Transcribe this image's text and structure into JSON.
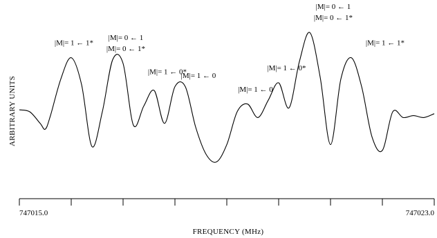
{
  "chart_data": {
    "type": "line",
    "title": "",
    "xlabel": "FREQUENCY (MHz)",
    "ylabel": "ARBITRARY UNITS",
    "xlim": [
      747015.0,
      747023.0
    ],
    "ylim": [
      0,
      1
    ],
    "grid": false,
    "x_tick_labels": [
      {
        "x": 747015.0,
        "label": "747015.0"
      },
      {
        "x": 747023.0,
        "label": "747023.0"
      }
    ],
    "x_minor_ticks": [
      747016.0,
      747017.0,
      747018.0,
      747019.0,
      747020.0,
      747021.0,
      747022.0
    ],
    "series": [
      {
        "x": [
          747015.0,
          747015.2,
          747015.4,
          747015.5,
          747015.6,
          747015.8,
          747016.0,
          747016.2,
          747016.4,
          747016.6,
          747016.8,
          747017.0,
          747017.2,
          747017.4,
          747017.6,
          747017.8,
          747018.0,
          747018.2,
          747018.4,
          747018.6,
          747018.8,
          747019.0,
          747019.2,
          747019.4,
          747019.6,
          747019.8,
          747020.0,
          747020.2,
          747020.4,
          747020.6,
          747020.8,
          747021.0,
          747021.2,
          747021.4,
          747021.6,
          747021.8,
          747022.0,
          747022.2,
          747022.4,
          747022.6,
          747022.8,
          747023.0
        ],
        "y": [
          0.46,
          0.45,
          0.39,
          0.36,
          0.43,
          0.62,
          0.73,
          0.59,
          0.27,
          0.45,
          0.72,
          0.7,
          0.38,
          0.48,
          0.56,
          0.39,
          0.58,
          0.58,
          0.37,
          0.23,
          0.19,
          0.28,
          0.45,
          0.49,
          0.42,
          0.51,
          0.6,
          0.47,
          0.71,
          0.86,
          0.63,
          0.28,
          0.62,
          0.73,
          0.58,
          0.32,
          0.25,
          0.45,
          0.42,
          0.43,
          0.42,
          0.44
        ]
      }
    ],
    "annotations": [
      {
        "x": 747016.0,
        "y": 0.73,
        "text": "|M|= 1 ← 1*"
      },
      {
        "x": 747017.0,
        "y": 0.7,
        "text": "|M|= 0 ← 1"
      },
      {
        "x": 747017.0,
        "y": 0.7,
        "text": "|M|= 0 ← 1*"
      },
      {
        "x": 747017.8,
        "y": 0.58,
        "text": "|M|= 1 ← 0*"
      },
      {
        "x": 747018.4,
        "y": 0.56,
        "text": "|M|= 1 ← 0"
      },
      {
        "x": 747019.5,
        "y": 0.49,
        "text": "|M|= 1 ← 0"
      },
      {
        "x": 747020.1,
        "y": 0.6,
        "text": "|M|= 1 ← 0*"
      },
      {
        "x": 747021.0,
        "y": 0.86,
        "text": "|M|= 0 ← 1"
      },
      {
        "x": 747021.0,
        "y": 0.86,
        "text": "|M|= 0 ← 1*"
      },
      {
        "x": 747022.0,
        "y": 0.73,
        "text": "|M|= 1 ← 1*"
      }
    ]
  }
}
